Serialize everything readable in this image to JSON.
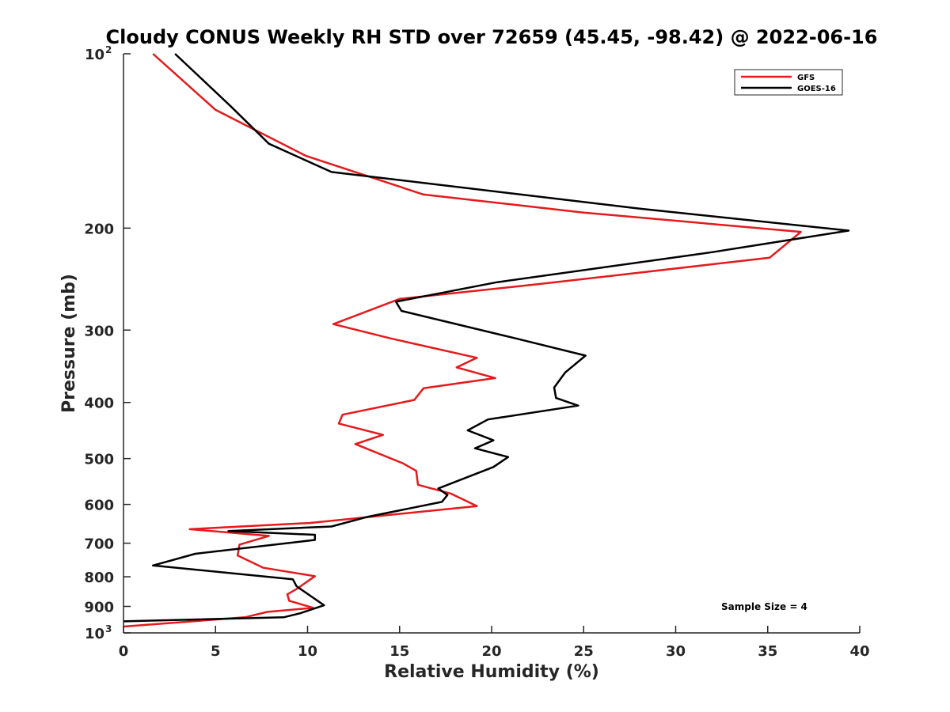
{
  "chart_data": {
    "type": "line",
    "title": "Cloudy CONUS Weekly RH STD over 72659 (45.45, -98.42) @ 2022-06-16",
    "xlabel": "Relative Humidity (%)",
    "ylabel": "Pressure (mb)",
    "xlim": [
      0,
      40
    ],
    "ylim": [
      100,
      1000
    ],
    "y_scale": "log",
    "y_reversed": true,
    "grid": false,
    "legend_position": "top-right",
    "x_ticks": [
      "0",
      "5",
      "10",
      "15",
      "20",
      "25",
      "30",
      "35",
      "40"
    ],
    "y_ticks": [
      {
        "value": 100,
        "base": "10",
        "exp": "2"
      },
      {
        "value": 200,
        "label": "200"
      },
      {
        "value": 300,
        "label": "300"
      },
      {
        "value": 400,
        "label": "400"
      },
      {
        "value": 500,
        "label": "500"
      },
      {
        "value": 600,
        "label": "600"
      },
      {
        "value": 700,
        "label": "700"
      },
      {
        "value": 800,
        "label": "800"
      },
      {
        "value": 900,
        "label": "900"
      },
      {
        "value": 1000,
        "base": "10",
        "exp": "3"
      }
    ],
    "series": [
      {
        "name": "GFS",
        "color": "#e41a1c",
        "points": [
          [
            1.6,
            100
          ],
          [
            5.0,
            125
          ],
          [
            9.9,
            150
          ],
          [
            16.3,
            175
          ],
          [
            25.0,
            188
          ],
          [
            36.8,
            203
          ],
          [
            35.1,
            225
          ],
          [
            22.5,
            250
          ],
          [
            15.0,
            265
          ],
          [
            11.4,
            293
          ],
          [
            14.5,
            310
          ],
          [
            19.2,
            335
          ],
          [
            18.1,
            348
          ],
          [
            20.2,
            363
          ],
          [
            16.3,
            378
          ],
          [
            15.8,
            396
          ],
          [
            11.9,
            420
          ],
          [
            11.7,
            435
          ],
          [
            14.1,
            455
          ],
          [
            12.6,
            472
          ],
          [
            15.2,
            510
          ],
          [
            15.9,
            525
          ],
          [
            16.0,
            555
          ],
          [
            17.8,
            575
          ],
          [
            19.2,
            604
          ],
          [
            10.1,
            646
          ],
          [
            3.6,
            662
          ],
          [
            7.9,
            680
          ],
          [
            6.3,
            704
          ],
          [
            6.2,
            735
          ],
          [
            7.6,
            772
          ],
          [
            10.4,
            798
          ],
          [
            9.4,
            840
          ],
          [
            8.9,
            858
          ],
          [
            9.0,
            880
          ],
          [
            10.3,
            905
          ],
          [
            7.8,
            920
          ],
          [
            6.6,
            940
          ],
          [
            0,
            975
          ]
        ]
      },
      {
        "name": "GOES-16",
        "color": "#000000",
        "points": [
          [
            2.8,
            100
          ],
          [
            5.8,
            123
          ],
          [
            7.9,
            143
          ],
          [
            11.3,
            160
          ],
          [
            28.0,
            185
          ],
          [
            39.4,
            202
          ],
          [
            32.0,
            220
          ],
          [
            20.3,
            248
          ],
          [
            14.8,
            268
          ],
          [
            15.1,
            278
          ],
          [
            21.3,
            310
          ],
          [
            25.1,
            332
          ],
          [
            24.0,
            355
          ],
          [
            23.4,
            377
          ],
          [
            23.5,
            393
          ],
          [
            24.7,
            405
          ],
          [
            19.8,
            428
          ],
          [
            18.7,
            447
          ],
          [
            20.1,
            465
          ],
          [
            19.1,
            480
          ],
          [
            20.9,
            497
          ],
          [
            20.1,
            517
          ],
          [
            17.1,
            563
          ],
          [
            17.6,
            578
          ],
          [
            17.3,
            594
          ],
          [
            13.3,
            630
          ],
          [
            11.3,
            655
          ],
          [
            5.7,
            667
          ],
          [
            10.4,
            677
          ],
          [
            10.4,
            691
          ],
          [
            3.9,
            730
          ],
          [
            1.6,
            765
          ],
          [
            9.2,
            808
          ],
          [
            9.4,
            831
          ],
          [
            10.9,
            896
          ],
          [
            9.6,
            925
          ],
          [
            8.7,
            940
          ],
          [
            0,
            955
          ]
        ]
      }
    ],
    "annotations": [
      "Sample Size = 4"
    ]
  }
}
